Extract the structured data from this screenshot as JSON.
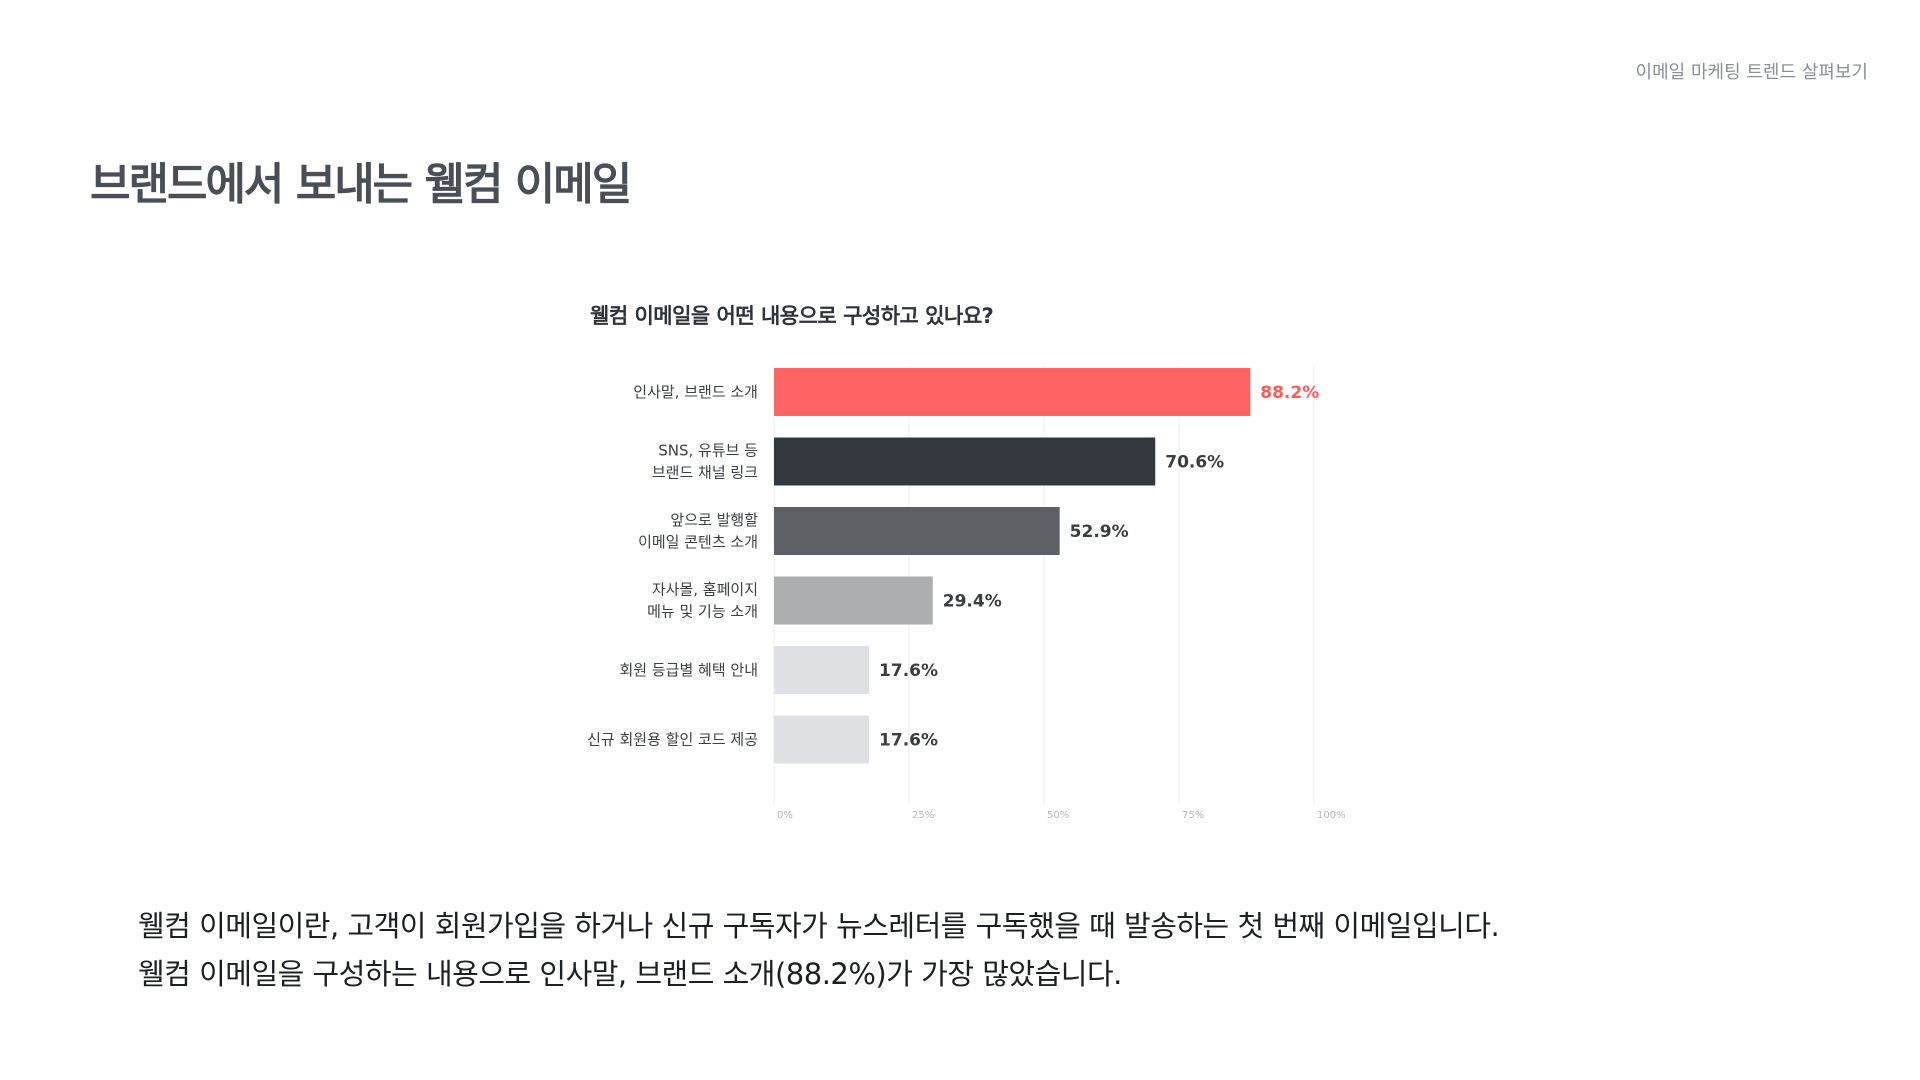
{
  "header": {
    "tag": "이메일 마케팅 트렌드 살펴보기"
  },
  "page_title": "브랜드에서 보내는 웰컴 이메일",
  "caption": {
    "line1": "웰컴 이메일이란, 고객이 회원가입을 하거나 신규 구독자가 뉴스레터를 구독했을 때 발송하는 첫 번째 이메일입니다.",
    "line2": "웰컴 이메일을 구성하는 내용으로 인사말, 브랜드 소개(88.2%)가 가장 많았습니다."
  },
  "chart_data": {
    "type": "bar",
    "orientation": "horizontal",
    "title": "웰컴 이메일을 어떤 내용으로 구성하고 있나요?",
    "categories": [
      [
        "인사말, 브랜드 소개"
      ],
      [
        "SNS, 유튜브 등",
        "브랜드 채널 링크"
      ],
      [
        "앞으로 발행할",
        "이메일 콘텐츠 소개"
      ],
      [
        "자사몰, 홈페이지",
        "메뉴 및 기능 소개"
      ],
      [
        "회원 등급별 혜택 안내"
      ],
      [
        "신규 회원용 할인 코드 제공"
      ]
    ],
    "values": [
      88.2,
      70.6,
      52.9,
      29.4,
      17.6,
      17.6
    ],
    "value_labels": [
      "88.2%",
      "70.6%",
      "52.9%",
      "29.4%",
      "17.6%",
      "17.6%"
    ],
    "bar_colors": [
      "#ff6464",
      "#33373e",
      "#5c5f64",
      "#adaeb0",
      "#dfe0e3",
      "#dfe0e3"
    ],
    "label_colors": [
      "#ff5a5a",
      "#3a3d42",
      "#3a3d42",
      "#3a3d42",
      "#3a3d42",
      "#3a3d42"
    ],
    "xlim": [
      0,
      100
    ],
    "xticks": [
      0,
      25,
      50,
      75,
      100
    ],
    "xtick_labels": [
      "0%",
      "25%",
      "50%",
      "75%",
      "100%"
    ],
    "grid": true
  }
}
